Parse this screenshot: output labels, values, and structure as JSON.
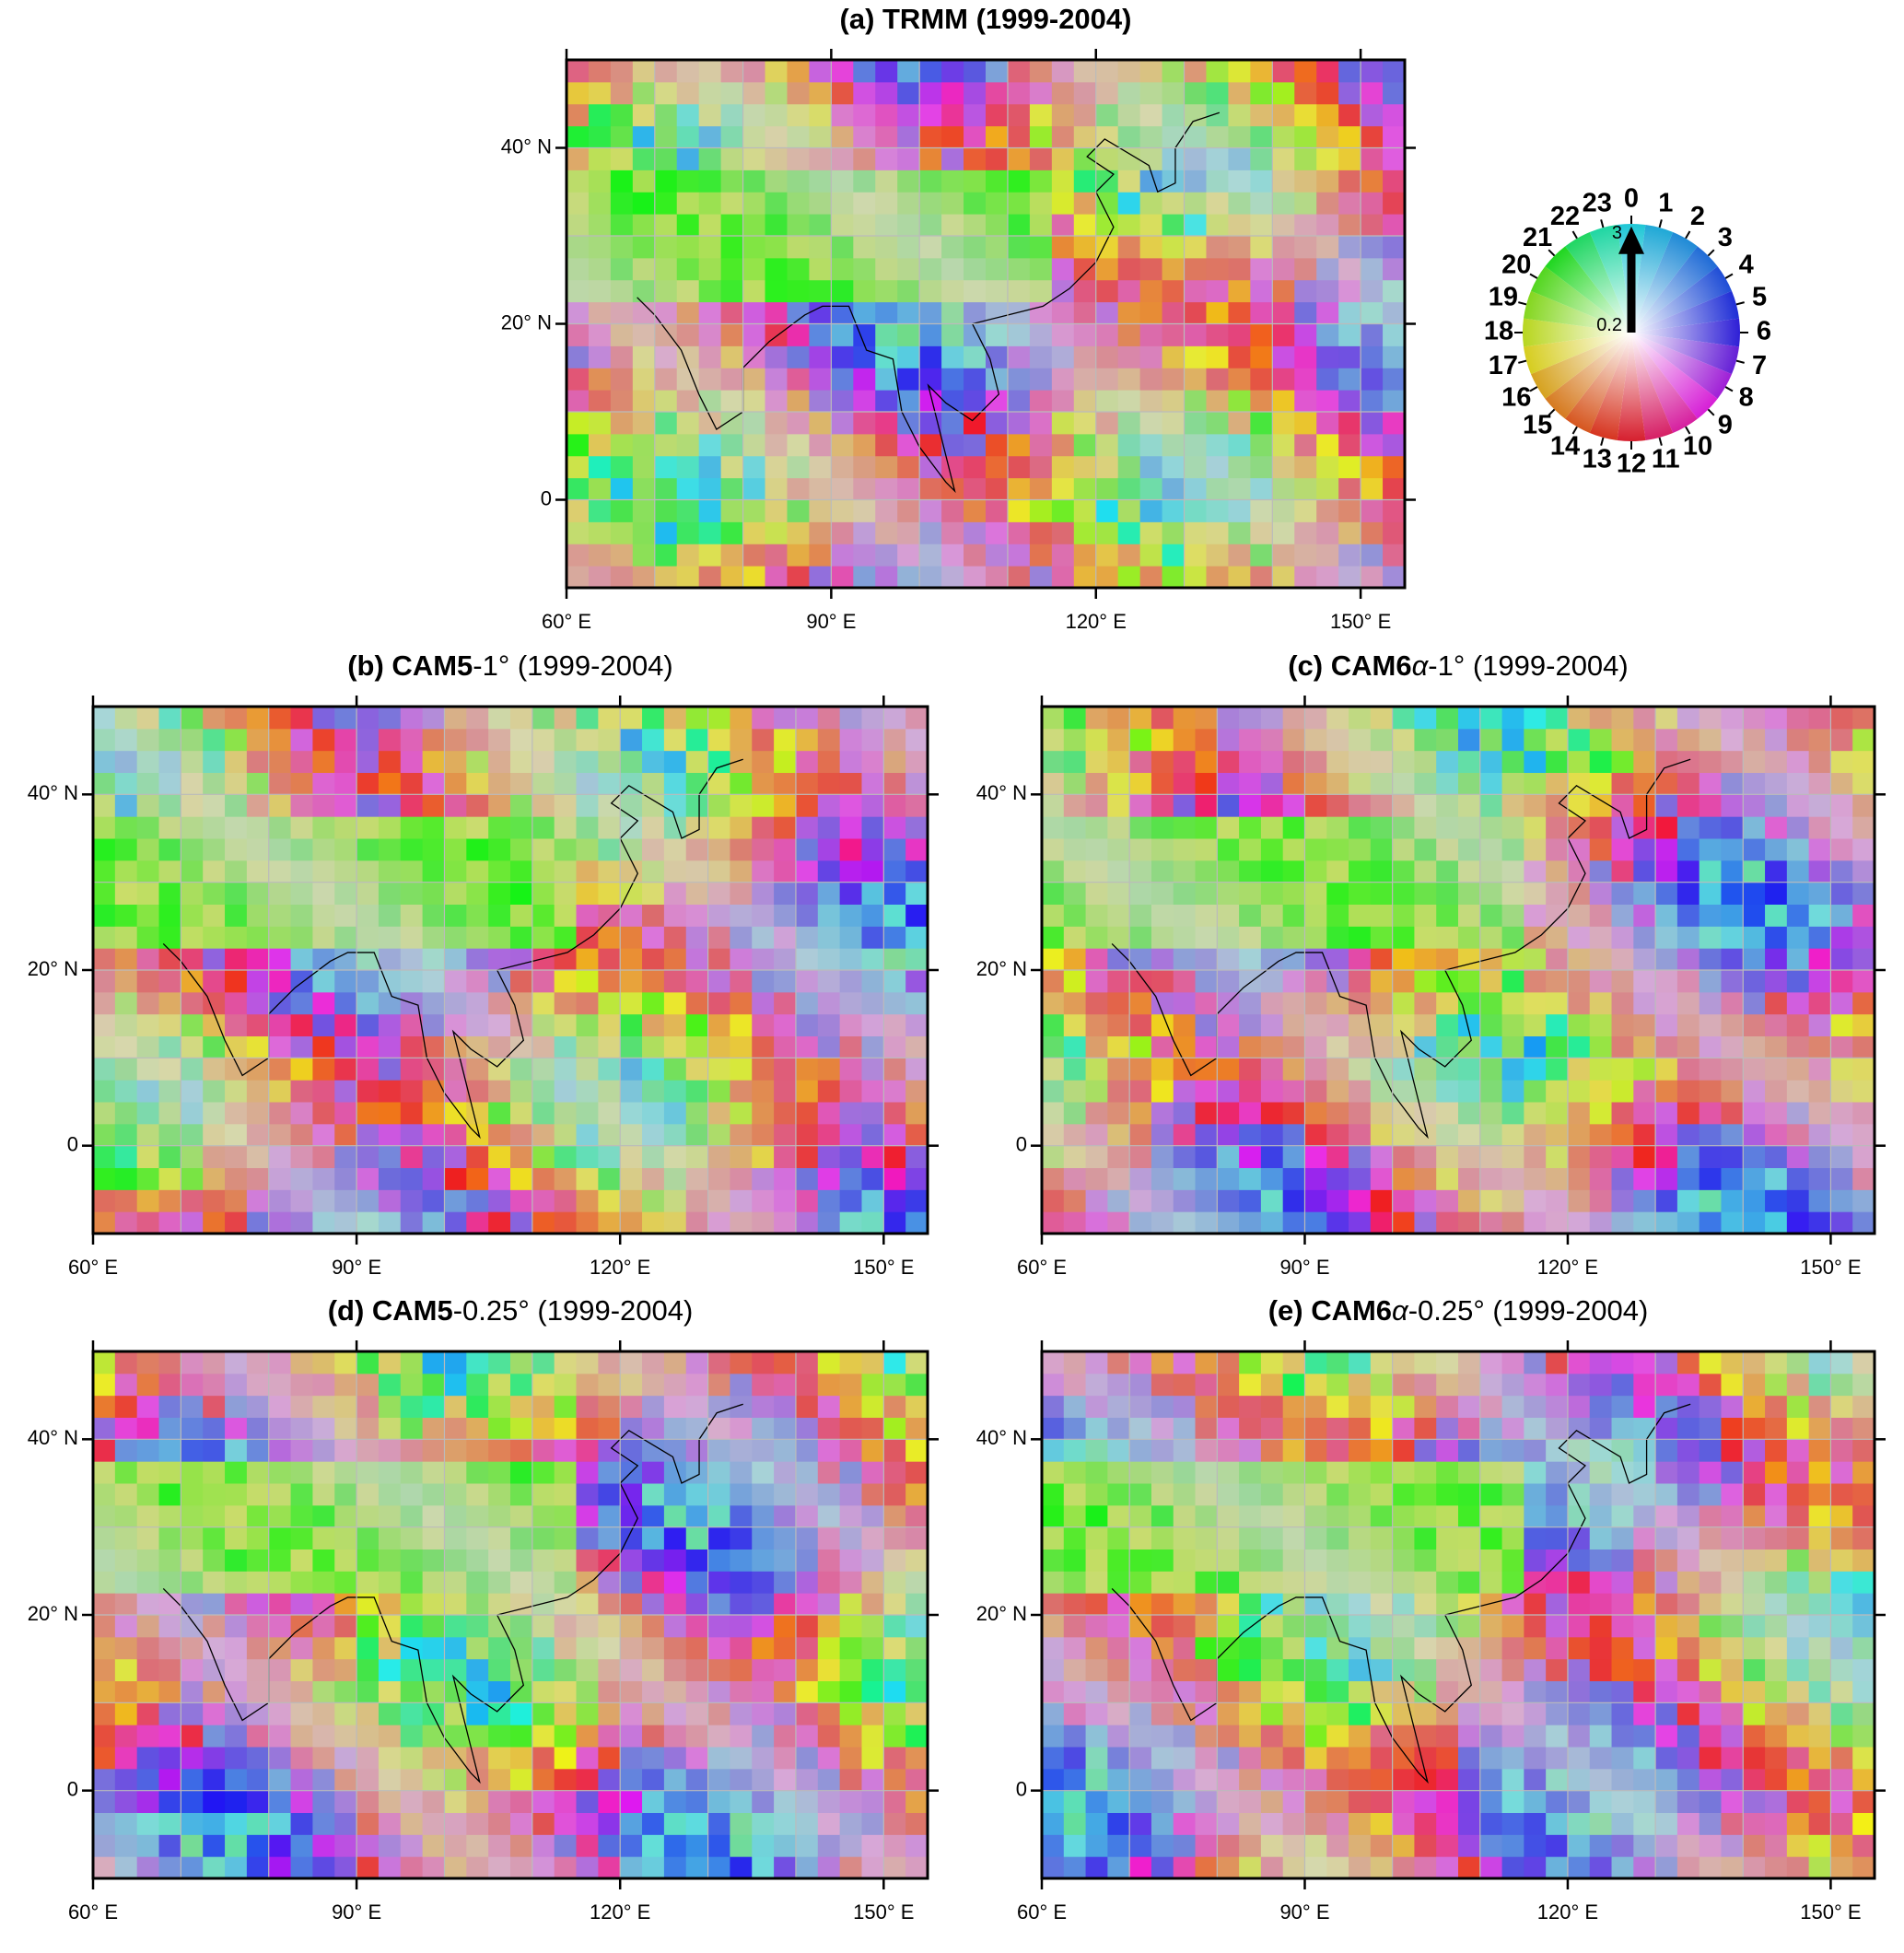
{
  "panels": [
    {
      "title": [
        {
          "text": "(a) TRMM (1999-2004)",
          "style": "bold"
        }
      ],
      "xlim": [
        60,
        155
      ],
      "ylim": [
        -10,
        50
      ],
      "xticks": [
        {
          "value": 60,
          "label": "60° E"
        },
        {
          "value": 90,
          "label": "90° E"
        },
        {
          "value": 120,
          "label": "120° E"
        },
        {
          "value": 150,
          "label": "150° E"
        }
      ],
      "yticks": [
        0,
        {
          "value": 20,
          "label": "20° N"
        },
        {
          "value": 40,
          "label": "40° N"
        }
      ],
      "grid_lon": [
        70,
        80,
        90,
        100,
        110,
        120,
        130,
        140,
        150
      ],
      "grid_lat": [
        0,
        10,
        20,
        30,
        40
      ]
    },
    {
      "title": [
        {
          "text": "(b) CAM5",
          "style": "bold"
        },
        {
          "text": "-1° (1999-2004)",
          "style": "normal"
        }
      ],
      "xlim": [
        60,
        155
      ],
      "ylim": [
        -10,
        50
      ],
      "xticks": [
        {
          "value": 60,
          "label": "60° E"
        },
        {
          "value": 90,
          "label": "90° E"
        },
        {
          "value": 120,
          "label": "120° E"
        },
        {
          "value": 150,
          "label": "150° E"
        }
      ],
      "yticks": [
        0,
        {
          "value": 20,
          "label": "20° N"
        },
        {
          "value": 40,
          "label": "40° N"
        }
      ],
      "grid_lon": [
        70,
        80,
        90,
        100,
        110,
        120,
        130,
        140,
        150
      ],
      "grid_lat": [
        0,
        10,
        20,
        30,
        40
      ]
    },
    {
      "title": [
        {
          "text": "(c) CAM6",
          "style": "bold"
        },
        {
          "text": "α",
          "style": "italic"
        },
        {
          "text": "-1° (1999-2004)",
          "style": "normal"
        }
      ],
      "xlim": [
        60,
        155
      ],
      "ylim": [
        -10,
        50
      ],
      "xticks": [
        {
          "value": 60,
          "label": "60° E"
        },
        {
          "value": 90,
          "label": "90° E"
        },
        {
          "value": 120,
          "label": "120° E"
        },
        {
          "value": 150,
          "label": "150° E"
        }
      ],
      "yticks": [
        0,
        {
          "value": 20,
          "label": "20° N"
        },
        {
          "value": 40,
          "label": "40° N"
        }
      ],
      "grid_lon": [
        70,
        80,
        90,
        100,
        110,
        120,
        130,
        140,
        150
      ],
      "grid_lat": [
        0,
        10,
        20,
        30,
        40
      ]
    },
    {
      "title": [
        {
          "text": "(d) CAM5",
          "style": "bold"
        },
        {
          "text": "-0.25° (1999-2004)",
          "style": "normal"
        }
      ],
      "xlim": [
        60,
        155
      ],
      "ylim": [
        -10,
        50
      ],
      "xticks": [
        {
          "value": 60,
          "label": "60° E"
        },
        {
          "value": 90,
          "label": "90° E"
        },
        {
          "value": 120,
          "label": "120° E"
        },
        {
          "value": 150,
          "label": "150° E"
        }
      ],
      "yticks": [
        0,
        {
          "value": 20,
          "label": "20° N"
        },
        {
          "value": 40,
          "label": "40° N"
        }
      ],
      "grid_lon": [
        70,
        80,
        90,
        100,
        110,
        120,
        130,
        140,
        150
      ],
      "grid_lat": [
        0,
        10,
        20,
        30,
        40
      ]
    },
    {
      "title": [
        {
          "text": "(e) CAM6",
          "style": "bold"
        },
        {
          "text": "α",
          "style": "italic"
        },
        {
          "text": "-0.25° (1999-2004)",
          "style": "normal"
        }
      ],
      "xlim": [
        60,
        155
      ],
      "ylim": [
        -10,
        50
      ],
      "xticks": [
        {
          "value": 60,
          "label": "60° E"
        },
        {
          "value": 90,
          "label": "90° E"
        },
        {
          "value": 120,
          "label": "120° E"
        },
        {
          "value": 150,
          "label": "150° E"
        }
      ],
      "yticks": [
        0,
        {
          "value": 20,
          "label": "20° N"
        },
        {
          "value": 40,
          "label": "40° N"
        }
      ],
      "grid_lon": [
        70,
        80,
        90,
        100,
        110,
        120,
        130,
        140,
        150
      ],
      "grid_lat": [
        0,
        10,
        20,
        30,
        40
      ]
    }
  ],
  "legend": {
    "hours": [
      0,
      1,
      2,
      3,
      4,
      5,
      6,
      7,
      8,
      9,
      10,
      11,
      12,
      13,
      14,
      15,
      16,
      17,
      18,
      19,
      20,
      21,
      22,
      23
    ],
    "radius_ticks": [
      0.2,
      3
    ],
    "rlim": [
      0,
      3.3
    ]
  }
}
